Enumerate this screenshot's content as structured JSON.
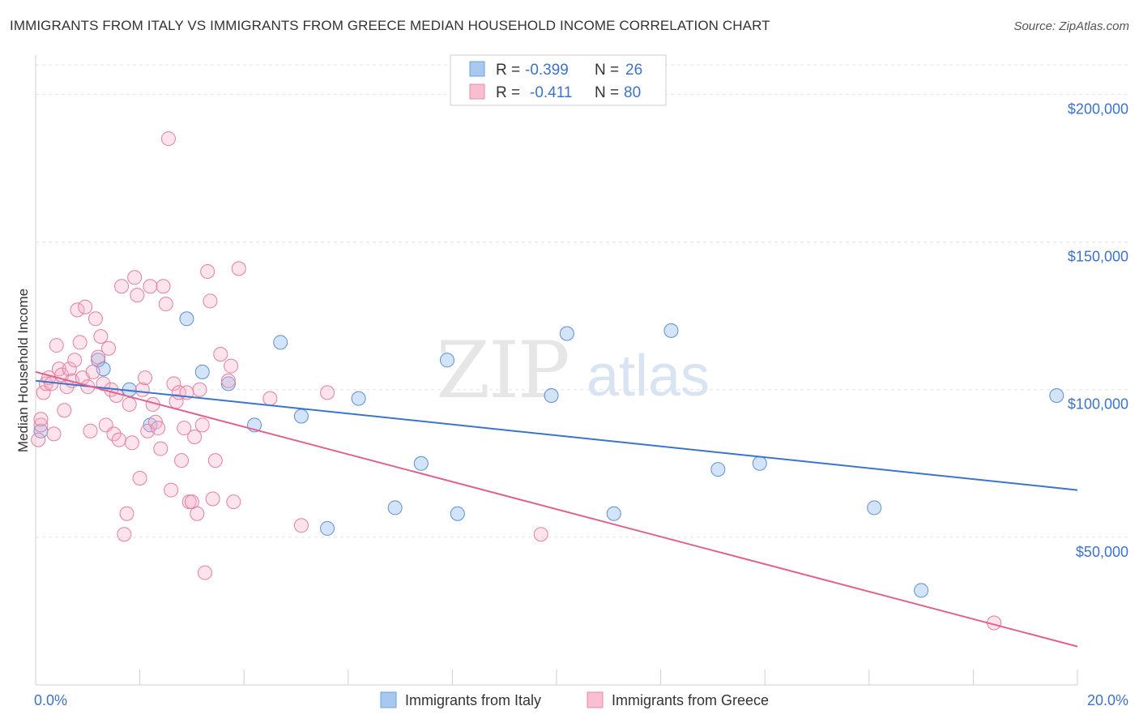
{
  "title": "IMMIGRANTS FROM ITALY VS IMMIGRANTS FROM GREECE MEDIAN HOUSEHOLD INCOME CORRELATION CHART",
  "source": "Source: ZipAtlas.com",
  "watermark": {
    "zip": "ZIP",
    "atlas": "atlas"
  },
  "legend": {
    "r_label": "R =",
    "n_label": "N =",
    "rows": [
      {
        "r": "-0.399",
        "n": "26",
        "color": "#a9c8ef",
        "stroke": "#6fa0dd"
      },
      {
        "r": "-0.411",
        "n": "80",
        "color": "#f7bfd0",
        "stroke": "#e889a8"
      }
    ]
  },
  "bottom_legend": [
    "Immigrants from Italy",
    "Immigrants from Greece"
  ],
  "chart_data": {
    "type": "scatter",
    "ylabel": "Median Household Income",
    "xlim": [
      0,
      20
    ],
    "ylim": [
      0,
      210000
    ],
    "x_tick_labels": [
      "0.0%",
      "20.0%"
    ],
    "y_ticks": [
      50000,
      100000,
      150000,
      200000
    ],
    "y_tick_labels": [
      "$50,000",
      "$100,000",
      "$150,000",
      "$200,000"
    ],
    "grid": true,
    "series": [
      {
        "name": "Immigrants from Italy",
        "color": "#5b8fd6",
        "fill": "rgba(130,175,235,0.35)",
        "trend": {
          "x": [
            0,
            20
          ],
          "y": [
            103000,
            66000
          ],
          "color": "#3a75cc"
        },
        "points": [
          [
            0.1,
            86000
          ],
          [
            1.2,
            110000
          ],
          [
            1.3,
            107000
          ],
          [
            1.8,
            100000
          ],
          [
            2.2,
            88000
          ],
          [
            2.9,
            124000
          ],
          [
            3.2,
            106000
          ],
          [
            3.7,
            102000
          ],
          [
            4.2,
            88000
          ],
          [
            4.7,
            116000
          ],
          [
            5.1,
            91000
          ],
          [
            5.6,
            53000
          ],
          [
            6.2,
            97000
          ],
          [
            6.9,
            60000
          ],
          [
            7.4,
            75000
          ],
          [
            7.9,
            110000
          ],
          [
            8.1,
            58000
          ],
          [
            9.9,
            98000
          ],
          [
            10.2,
            119000
          ],
          [
            11.1,
            58000
          ],
          [
            12.2,
            120000
          ],
          [
            13.1,
            73000
          ],
          [
            13.9,
            75000
          ],
          [
            16.1,
            60000
          ],
          [
            17.0,
            32000
          ],
          [
            19.6,
            98000
          ]
        ]
      },
      {
        "name": "Immigrants from Greece",
        "color": "#e27fa0",
        "fill": "rgba(245,175,200,0.35)",
        "trend": {
          "x": [
            0,
            20
          ],
          "y": [
            106000,
            13000
          ],
          "color": "#e0628f"
        },
        "points": [
          [
            0.05,
            83000
          ],
          [
            0.1,
            88000
          ],
          [
            0.1,
            90000
          ],
          [
            0.15,
            99000
          ],
          [
            0.2,
            102000
          ],
          [
            0.25,
            104000
          ],
          [
            0.3,
            102000
          ],
          [
            0.35,
            85000
          ],
          [
            0.4,
            115000
          ],
          [
            0.45,
            107000
          ],
          [
            0.5,
            105000
          ],
          [
            0.55,
            93000
          ],
          [
            0.6,
            101000
          ],
          [
            0.65,
            107000
          ],
          [
            0.7,
            103000
          ],
          [
            0.75,
            110000
          ],
          [
            0.8,
            127000
          ],
          [
            0.85,
            116000
          ],
          [
            0.9,
            104000
          ],
          [
            0.95,
            128000
          ],
          [
            1.0,
            101000
          ],
          [
            1.05,
            86000
          ],
          [
            1.1,
            106000
          ],
          [
            1.15,
            124000
          ],
          [
            1.2,
            111000
          ],
          [
            1.25,
            118000
          ],
          [
            1.3,
            102000
          ],
          [
            1.35,
            88000
          ],
          [
            1.4,
            114000
          ],
          [
            1.45,
            100000
          ],
          [
            1.5,
            85000
          ],
          [
            1.55,
            98000
          ],
          [
            1.6,
            83000
          ],
          [
            1.65,
            135000
          ],
          [
            1.7,
            51000
          ],
          [
            1.75,
            58000
          ],
          [
            1.8,
            95000
          ],
          [
            1.85,
            82000
          ],
          [
            1.9,
            138000
          ],
          [
            1.95,
            132000
          ],
          [
            2.0,
            70000
          ],
          [
            2.05,
            100000
          ],
          [
            2.1,
            104000
          ],
          [
            2.15,
            86000
          ],
          [
            2.2,
            135000
          ],
          [
            2.25,
            95000
          ],
          [
            2.3,
            89000
          ],
          [
            2.35,
            87000
          ],
          [
            2.4,
            80000
          ],
          [
            2.45,
            135000
          ],
          [
            2.5,
            129000
          ],
          [
            2.55,
            185000
          ],
          [
            2.6,
            66000
          ],
          [
            2.65,
            102000
          ],
          [
            2.7,
            96000
          ],
          [
            2.75,
            99000
          ],
          [
            2.8,
            76000
          ],
          [
            2.85,
            87000
          ],
          [
            2.9,
            99000
          ],
          [
            2.95,
            62000
          ],
          [
            3.0,
            62000
          ],
          [
            3.05,
            84000
          ],
          [
            3.1,
            58000
          ],
          [
            3.15,
            100000
          ],
          [
            3.2,
            88000
          ],
          [
            3.25,
            38000
          ],
          [
            3.3,
            140000
          ],
          [
            3.35,
            130000
          ],
          [
            3.4,
            63000
          ],
          [
            3.45,
            76000
          ],
          [
            3.55,
            112000
          ],
          [
            3.7,
            103000
          ],
          [
            3.75,
            108000
          ],
          [
            3.8,
            62000
          ],
          [
            3.9,
            141000
          ],
          [
            4.5,
            97000
          ],
          [
            5.1,
            54000
          ],
          [
            5.6,
            99000
          ],
          [
            9.7,
            51000
          ],
          [
            18.4,
            21000
          ]
        ]
      }
    ]
  }
}
